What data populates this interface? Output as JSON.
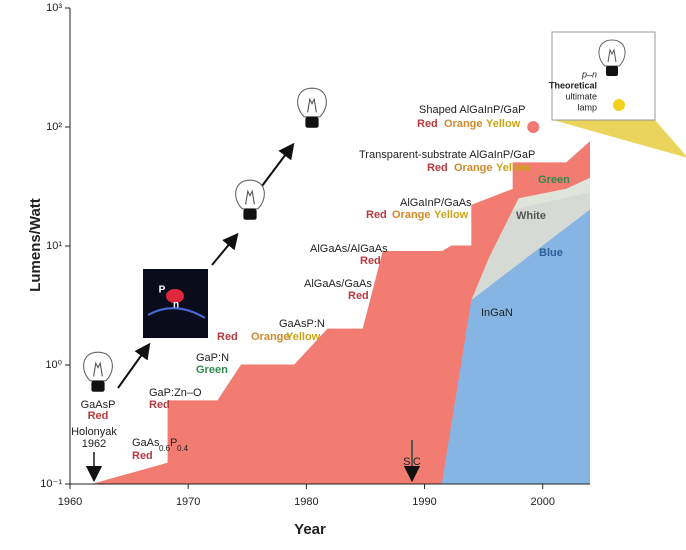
{
  "chart_data": {
    "type": "area",
    "xlabel": "Year",
    "ylabel": "Lumens/Watt",
    "xlim": [
      1960,
      2004
    ],
    "xticks": [
      1960,
      1970,
      1980,
      1990,
      2000
    ],
    "ylim": [
      0.1,
      1000
    ],
    "log_y": true,
    "yticks": [
      {
        "value": 0.1,
        "label": "10⁻¹"
      },
      {
        "value": 1,
        "label": "10⁰"
      },
      {
        "value": 10,
        "label": "10¹"
      },
      {
        "value": 100,
        "label": "10²"
      },
      {
        "value": 1000,
        "label": "10³"
      }
    ],
    "series": [
      {
        "color": "#f27b72",
        "x": [
          1962,
          1968.3,
          1968.3,
          1972.5,
          1974.5,
          1979,
          1981.8,
          1984.8,
          1986.5,
          1991.5,
          1992.3,
          1994,
          1994,
          1997.5,
          1997.5,
          2002,
          2004
        ],
        "values": [
          0.1,
          0.15,
          0.5,
          0.5,
          1,
          1,
          2,
          2,
          9,
          9,
          10,
          10,
          22,
          30,
          50,
          50,
          75
        ]
      },
      {
        "name": "Green",
        "color": "#dfe5da",
        "x": [
          1997.5,
          1998,
          2002,
          2004
        ],
        "values": [
          20,
          25,
          30,
          37
        ]
      },
      {
        "name": "White",
        "color": "#d6dad5",
        "x": [
          1994,
          1995.5,
          1997.5,
          2004
        ],
        "values": [
          3.5,
          8,
          20,
          28
        ]
      },
      {
        "name": "Blue",
        "color": "#86b5e3",
        "x": [
          1991.5,
          1994,
          2004
        ],
        "values": [
          0.1,
          3.5,
          20
        ]
      }
    ],
    "point": {
      "x": 1999.2,
      "y": 100,
      "color": "#ee7b73"
    },
    "annotations": [
      {
        "text": "GaAsP",
        "color": "#222222"
      },
      {
        "text": "Red",
        "color": "#b83a3f"
      },
      {
        "text": "Holonyak",
        "color": "#222222"
      },
      {
        "text": "1962",
        "color": "#222222"
      },
      {
        "text": "GaAs",
        "color": "#222222"
      },
      {
        "text": "0.6",
        "color": "#222222"
      },
      {
        "text": "P",
        "color": "#222222"
      },
      {
        "text": "0.4",
        "color": "#222222"
      },
      {
        "text": "Red",
        "color": "#b83a3f"
      },
      {
        "text": "GaP:Zn–O",
        "color": "#222222"
      },
      {
        "text": "Red",
        "color": "#b83a3f"
      },
      {
        "text": "GaP:N",
        "color": "#222222"
      },
      {
        "text": "Green",
        "color": "#2e8a4e"
      },
      {
        "text": "GaAsP:N",
        "color": "#222222"
      },
      {
        "text": "Red",
        "color": "#b83a3f"
      },
      {
        "text": "Orange",
        "color": "#d08a2a"
      },
      {
        "text": "Yellow",
        "color": "#c9a516"
      },
      {
        "text": "AlGaAs/GaAs",
        "color": "#222222"
      },
      {
        "text": "Red",
        "color": "#b83a3f"
      },
      {
        "text": "AlGaAs/AlGaAs",
        "color": "#222222"
      },
      {
        "text": "Red",
        "color": "#b83a3f"
      },
      {
        "text": "AlGaInP/GaAs",
        "color": "#222222"
      },
      {
        "text": "Red",
        "color": "#b83a3f"
      },
      {
        "text": "Orange",
        "color": "#d08a2a"
      },
      {
        "text": "Yellow",
        "color": "#c9a516"
      },
      {
        "text": "Transparent-substrate AlGaInP/GaP",
        "color": "#222222"
      },
      {
        "text": "Red",
        "color": "#b83a3f"
      },
      {
        "text": "Orange",
        "color": "#d08a2a"
      },
      {
        "text": "Yellow",
        "color": "#c9a516"
      },
      {
        "text": "Shaped AlGaInP/GaP",
        "color": "#222222"
      },
      {
        "text": "Red",
        "color": "#b83a3f"
      },
      {
        "text": "Orange",
        "color": "#d08a2a"
      },
      {
        "text": "Yellow",
        "color": "#c9a516"
      },
      {
        "text": "SiC",
        "color": "#222222"
      },
      {
        "text": "InGaN",
        "color": "#222222"
      },
      {
        "text": "p–n",
        "color": "#222222"
      },
      {
        "text": "Theoretical",
        "color": "#222222"
      },
      {
        "text": "ultimate",
        "color": "#222222"
      },
      {
        "text": "lamp",
        "color": "#222222"
      },
      {
        "text": "P",
        "color": "#ffffff"
      },
      {
        "text": "n",
        "color": "#ffffff"
      }
    ]
  }
}
